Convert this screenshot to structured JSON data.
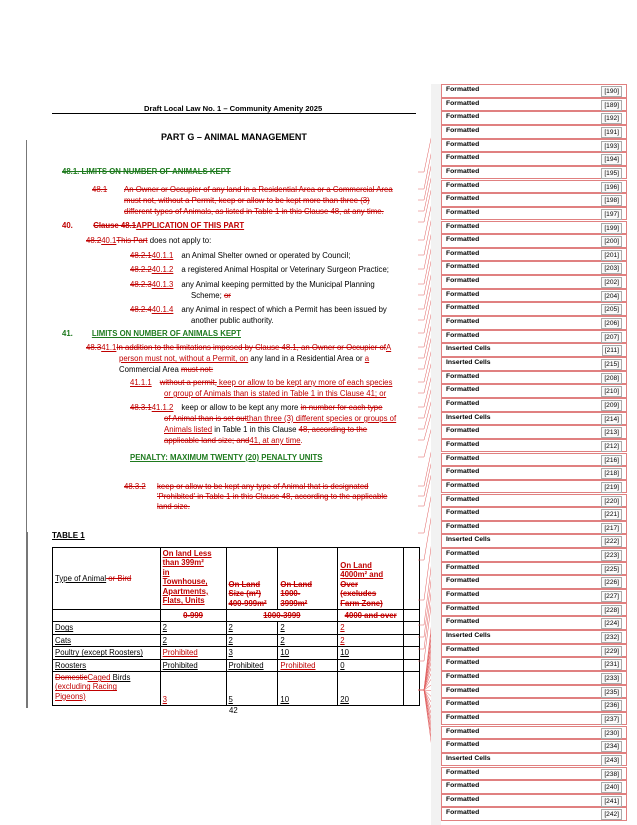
{
  "header": {
    "title": "Draft Local Law No. 1 – Community Amenity 2025"
  },
  "part_title": "PART G – ANIMAL MANAGEMENT",
  "deleted_clause_48_1": {
    "heading": "48.1.   LIMITS ON NUMBER OF ANIMALS KEPT",
    "num": "48.1",
    "lines": [
      "An Owner or Occupier of any land in a Residential Area or a Commercial Area",
      "must not, without a Permit, keep or allow to be kept more than three (3)",
      "different types of Animals, as listed in Table 1 in this Clause 48, at any time."
    ]
  },
  "clause_40": {
    "num": "40.",
    "heading_deleted": "Clause 48.1",
    "heading_inserted": "APPLICATION OF THIS PART",
    "intro_deleted_num": "48.2",
    "intro_num": "40.1",
    "intro_deleted": "This Part",
    "intro_text": " does not apply to:",
    "items": [
      {
        "old": "48.2.1",
        "new": "40.1.1",
        "text": "an Animal Shelter owned or operated by Council;"
      },
      {
        "old": "48.2.2",
        "new": "40.1.2",
        "text": "a registered Animal Hospital or Veterinary Surgeon Practice;"
      },
      {
        "old": "48.2.3",
        "new": "40.1.3",
        "text1": "any Animal keeping permitted by the Municipal Planning",
        "text2": "Scheme; ",
        "or": "or"
      },
      {
        "old": "48.2.4",
        "new": "40.1.4",
        "text1": "any Animal in respect of which a Permit has been issued by",
        "text2": "another public authority."
      }
    ]
  },
  "clause_41": {
    "num": "41.",
    "heading": "LIMITS ON NUMBER OF ANIMALS KEPT",
    "intro_old": "48.3",
    "intro_new": "41.1",
    "line1_deleted": "In addition to the limitations imposed by Clause 48.1, an Owner or Occupier of",
    "line1_inserted": "A",
    "line2_inserted_a": "person must not, without a Permit, on",
    "line2_text": " any land in a Residential Area or ",
    "line2_inserted_b": "a",
    "line3_text": "Commercial Area ",
    "line3_deleted": "must not:",
    "sub1": {
      "num": "41.1.1",
      "deleted": "without a permit,",
      "line1": " keep or allow to be kept any more of each species",
      "line2": "or group of Animals than is stated in Table 1 in this Clause 41; or"
    },
    "sub2": {
      "old": "48.3.1",
      "new": "41.1.2",
      "text": "keep or allow to be kept any more ",
      "deleted1": "in number for each type",
      "line2_deleted": "of Animal than is set out",
      "line2_inserted": "than three (3) different species or groups of",
      "line3_inserted": "Animals listed",
      "line3_text": " in Table 1 in this Clause ",
      "line3_deleted": "48, according to the",
      "line4_deleted": "applicable land size; and",
      "line4_inserted": "41, at any time",
      "line4_end": "."
    },
    "penalty": "PENALTY: MAXIMUM TWENTY (20) PENALTY UNITS",
    "deleted_48_3_2": {
      "num": "48.3.2",
      "lines": [
        "keep or allow to be kept any type of Animal that is designated",
        "'Prohibited' in Table 1 in this Clause 48, according to the applicable",
        "land size."
      ]
    }
  },
  "table": {
    "caption": "TABLE 1",
    "col1_header": "Type of Animal",
    "col1_header_deleted": " or Bird",
    "col2_header": [
      "On land Less",
      "than 399m²",
      "in",
      "Townhouse,",
      "Apartments,",
      "Flats, Units"
    ],
    "col3_header_deleted": "On Land",
    "col3_header_rest": [
      "Size (m²)",
      "400-999m²"
    ],
    "col4_header": [
      "On Land",
      "1000-",
      "3999m²"
    ],
    "col5_header_ins": [
      "On Land",
      "4000m² and"
    ],
    "col5_header_del": [
      "Over",
      "(excludes",
      "Farm Zone)"
    ],
    "subrow": [
      "0-999",
      "1000-3999",
      "4000 and over"
    ],
    "rows": [
      {
        "animal": "Dogs",
        "c2": "2",
        "c3": "2",
        "c4": "2",
        "c5": "2"
      },
      {
        "animal": "Cats",
        "c2": "2",
        "c3": "2",
        "c4": "2",
        "c5": "2"
      },
      {
        "animal": "Poultry (except Roosters)",
        "c2": "Prohibited",
        "c3": "3",
        "c4": "10",
        "c5": "10"
      },
      {
        "animal": "Roosters",
        "c2": "Prohibited",
        "c3": "Prohibited",
        "c4": "Prohibited",
        "c5": "0"
      },
      {
        "animal_deleted": "Domestic",
        "animal_inserted": "Caged",
        "animal": " Birds",
        "animal_sub": [
          "(excluding Racing",
          "Pigeons)"
        ],
        "c2": "3",
        "c3": "5",
        "c4": "10",
        "c5": "20"
      }
    ]
  },
  "page_number": "42",
  "balloons": [
    {
      "kind": "Formatted",
      "ref": "[190]"
    },
    {
      "kind": "Formatted",
      "ref": "[189]"
    },
    {
      "kind": "Formatted",
      "ref": "[192]"
    },
    {
      "kind": "Formatted",
      "ref": "[191]"
    },
    {
      "kind": "Formatted",
      "ref": "[193]"
    },
    {
      "kind": "Formatted",
      "ref": "[194]"
    },
    {
      "kind": "Formatted",
      "ref": "[195]"
    },
    {
      "kind": "Formatted",
      "ref": "[196]"
    },
    {
      "kind": "Formatted",
      "ref": "[198]"
    },
    {
      "kind": "Formatted",
      "ref": "[197]"
    },
    {
      "kind": "Formatted",
      "ref": "[199]"
    },
    {
      "kind": "Formatted",
      "ref": "[200]"
    },
    {
      "kind": "Formatted",
      "ref": "[201]"
    },
    {
      "kind": "Formatted",
      "ref": "[203]"
    },
    {
      "kind": "Formatted",
      "ref": "[202]"
    },
    {
      "kind": "Formatted",
      "ref": "[204]"
    },
    {
      "kind": "Formatted",
      "ref": "[205]"
    },
    {
      "kind": "Formatted",
      "ref": "[206]"
    },
    {
      "kind": "Formatted",
      "ref": "[207]"
    },
    {
      "kind": "Inserted Cells",
      "ref": "[211]"
    },
    {
      "kind": "Inserted Cells",
      "ref": "[215]"
    },
    {
      "kind": "Formatted",
      "ref": "[208]"
    },
    {
      "kind": "Formatted",
      "ref": "[210]"
    },
    {
      "kind": "Formatted",
      "ref": "[209]"
    },
    {
      "kind": "Inserted Cells",
      "ref": "[214]"
    },
    {
      "kind": "Formatted",
      "ref": "[213]"
    },
    {
      "kind": "Formatted",
      "ref": "[212]"
    },
    {
      "kind": "Formatted",
      "ref": "[216]"
    },
    {
      "kind": "Formatted",
      "ref": "[218]"
    },
    {
      "kind": "Formatted",
      "ref": "[219]"
    },
    {
      "kind": "Formatted",
      "ref": "[220]"
    },
    {
      "kind": "Formatted",
      "ref": "[221]"
    },
    {
      "kind": "Formatted",
      "ref": "[217]"
    },
    {
      "kind": "Inserted Cells",
      "ref": "[222]"
    },
    {
      "kind": "Formatted",
      "ref": "[223]"
    },
    {
      "kind": "Formatted",
      "ref": "[225]"
    },
    {
      "kind": "Formatted",
      "ref": "[226]"
    },
    {
      "kind": "Formatted",
      "ref": "[227]"
    },
    {
      "kind": "Formatted",
      "ref": "[228]"
    },
    {
      "kind": "Formatted",
      "ref": "[224]"
    },
    {
      "kind": "Inserted Cells",
      "ref": "[232]"
    },
    {
      "kind": "Formatted",
      "ref": "[229]"
    },
    {
      "kind": "Formatted",
      "ref": "[231]"
    },
    {
      "kind": "Formatted",
      "ref": "[233]"
    },
    {
      "kind": "Formatted",
      "ref": "[235]"
    },
    {
      "kind": "Formatted",
      "ref": "[236]"
    },
    {
      "kind": "Formatted",
      "ref": "[237]"
    },
    {
      "kind": "Formatted",
      "ref": "[230]"
    },
    {
      "kind": "Formatted",
      "ref": "[234]"
    },
    {
      "kind": "Inserted Cells",
      "ref": "[243]"
    },
    {
      "kind": "Formatted",
      "ref": "[238]"
    },
    {
      "kind": "Formatted",
      "ref": "[240]"
    },
    {
      "kind": "Formatted",
      "ref": "[241]"
    },
    {
      "kind": "Formatted",
      "ref": "[242]"
    }
  ]
}
